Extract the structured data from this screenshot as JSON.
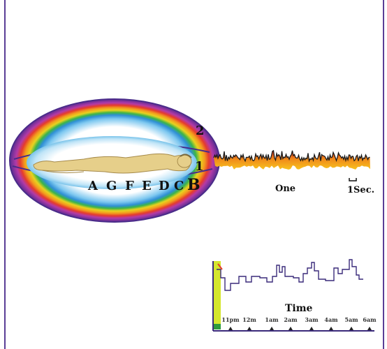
{
  "aura": {
    "layer_labels": [
      "A",
      "G",
      "F",
      "E",
      "D",
      "C",
      "B"
    ],
    "layer_colors": [
      "#e53b2d",
      "#8e44ad",
      "#e67e22",
      "#2e8b3e",
      "#2e86c1",
      "#1f3a93",
      "#4a2c8a"
    ],
    "outer_number": "2",
    "inner_number": "1"
  },
  "eeg": {
    "caption": "One",
    "scale_label": "1Sec."
  },
  "sleep_chart": {
    "axis_label": "Time",
    "ticks": [
      "11pm",
      "12m",
      "1am",
      "2am",
      "3am",
      "4am",
      "5am",
      "6am"
    ]
  }
}
